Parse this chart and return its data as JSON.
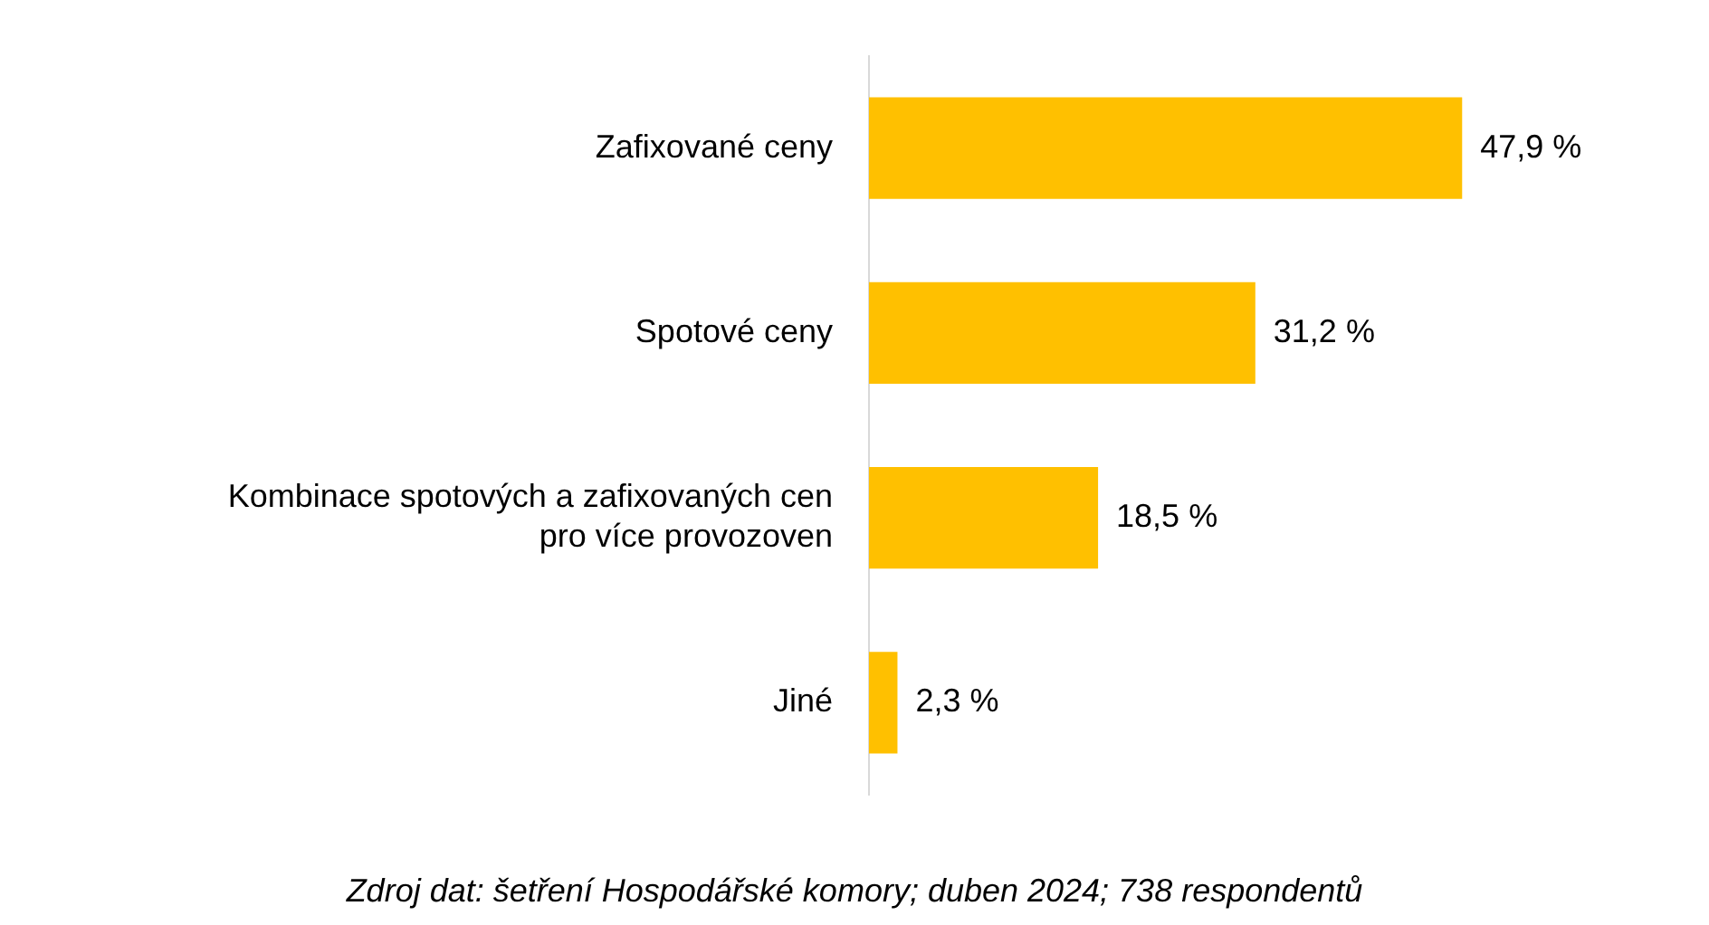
{
  "chart_data": {
    "type": "bar",
    "orientation": "horizontal",
    "categories": [
      "Zafixované ceny",
      "Spotové ceny",
      "Kombinace spotových a zafixovaných cen pro více provozoven",
      "Jiné"
    ],
    "values": [
      47.9,
      31.2,
      18.5,
      2.3
    ],
    "value_labels": [
      "47,9 %",
      "31,2 %",
      "18,5 %",
      "2,3 %"
    ],
    "color": "#ffc000",
    "tick_labels": "y",
    "annotations": [
      "Zdroj dat: šetření Hospodářské komory; duben 2024; 738 respondentů"
    ]
  }
}
